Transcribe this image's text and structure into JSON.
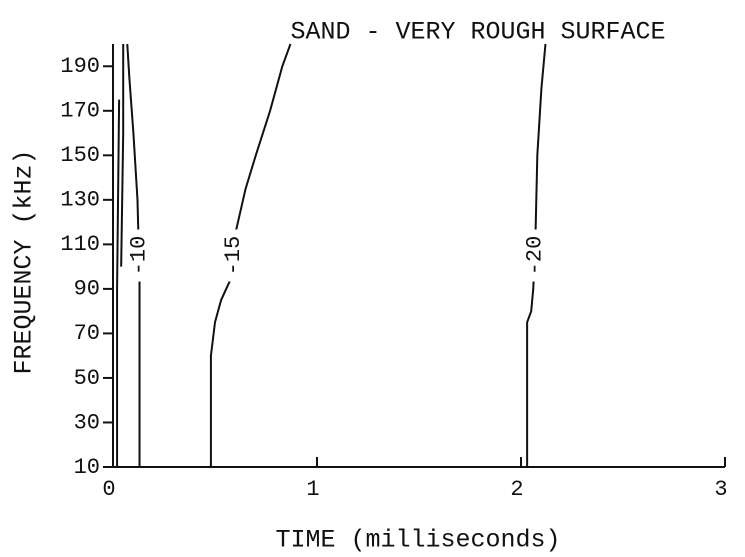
{
  "chart_data": {
    "type": "contour",
    "title": "SAND - VERY ROUGH SURFACE",
    "xlabel": "TIME (milliseconds)",
    "ylabel": "FREQUENCY (kHz)",
    "xlim": [
      0,
      3
    ],
    "xticks": [
      0,
      1,
      2,
      3
    ],
    "ylim": [
      10,
      200
    ],
    "yticks": [
      10,
      30,
      50,
      70,
      90,
      110,
      130,
      150,
      170,
      190
    ],
    "color": "#111111",
    "series": [
      {
        "name": "-10",
        "x": [
          0.13,
          0.13,
          0.12,
          0.1,
          0.08,
          0.07
        ],
        "values": [
          10,
          95,
          130,
          160,
          185,
          200
        ]
      },
      {
        "x": [
          0.02,
          0.02,
          0.03
        ],
        "values": [
          10,
          90,
          175
        ]
      },
      {
        "x": [
          0.04,
          0.05,
          0.05
        ],
        "values": [
          100,
          160,
          200
        ]
      },
      {
        "name": "-15",
        "x": [
          0.48,
          0.48,
          0.5,
          0.53,
          0.58,
          0.6,
          0.65,
          0.7,
          0.77,
          0.83,
          0.87
        ],
        "values": [
          10,
          60,
          75,
          85,
          95,
          115,
          135,
          150,
          170,
          190,
          200
        ]
      },
      {
        "name": "-20",
        "x": [
          2.03,
          2.03,
          2.05,
          2.06,
          2.07,
          2.08,
          2.1,
          2.12
        ],
        "values": [
          10,
          75,
          80,
          90,
          110,
          150,
          180,
          200
        ]
      }
    ]
  }
}
